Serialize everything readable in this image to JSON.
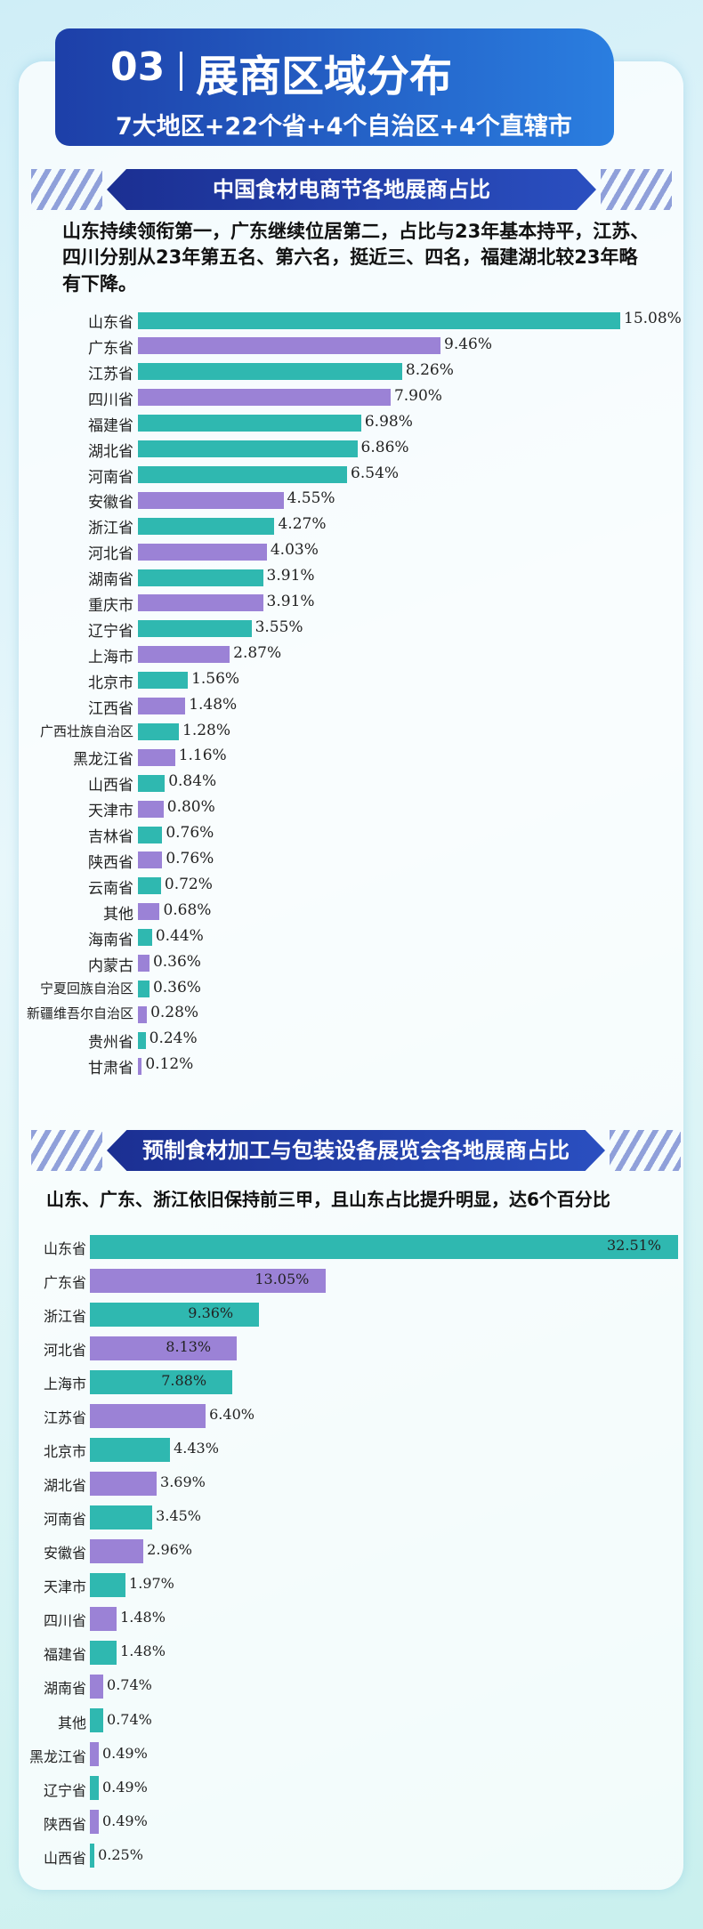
{
  "header": {
    "number": "03",
    "title": "展商区域分布",
    "subtitle": "7大地区+22个省+4个自治区+4个直辖市"
  },
  "chart_data": [
    {
      "type": "bar",
      "orientation": "horizontal",
      "title": "中国食材电商节各地展商占比",
      "subtitle": "山东持续领衔第一，广东继续位居第二，占比与23年基本持平，江苏、四川分别从23年第五名、第六名，挺近三、四名，福建湖北较23年略有下降。",
      "categories": [
        "山东省",
        "广东省",
        "江苏省",
        "四川省",
        "福建省",
        "湖北省",
        "河南省",
        "安徽省",
        "浙江省",
        "河北省",
        "湖南省",
        "重庆市",
        "辽宁省",
        "上海市",
        "北京市",
        "江西省",
        "广西壮族自治区",
        "黑龙江省",
        "山西省",
        "天津市",
        "吉林省",
        "陕西省",
        "云南省",
        "其他",
        "海南省",
        "内蒙古",
        "宁夏回族自治区",
        "新疆维吾尔自治区",
        "贵州省",
        "甘肃省"
      ],
      "values": [
        15.08,
        9.46,
        8.26,
        7.9,
        6.98,
        6.86,
        6.54,
        4.55,
        4.27,
        4.03,
        3.91,
        3.91,
        3.55,
        2.87,
        1.56,
        1.48,
        1.28,
        1.16,
        0.84,
        0.8,
        0.76,
        0.76,
        0.72,
        0.68,
        0.44,
        0.36,
        0.36,
        0.28,
        0.24,
        0.12
      ],
      "value_labels": [
        "15.08%",
        "9.46%",
        "8.26%",
        "7.90%",
        "6.98%",
        "6.86%",
        "6.54%",
        "4.55%",
        "4.27%",
        "4.03%",
        "3.91%",
        "3.91%",
        "3.55%",
        "2.87%",
        "1.56%",
        "1.48%",
        "1.28%",
        "1.16%",
        "0.84%",
        "0.80%",
        "0.76%",
        "0.76%",
        "0.72%",
        "0.68%",
        "0.44%",
        "0.36%",
        "0.36%",
        "0.28%",
        "0.24%",
        "0.12%"
      ],
      "colors": [
        "#2fb8b0",
        "#9b82d6",
        "#2fb8b0",
        "#9b82d6",
        "#2fb8b0",
        "#2fb8b0",
        "#2fb8b0",
        "#9b82d6",
        "#2fb8b0",
        "#9b82d6",
        "#2fb8b0",
        "#9b82d6",
        "#2fb8b0",
        "#9b82d6",
        "#2fb8b0",
        "#9b82d6",
        "#2fb8b0",
        "#9b82d6",
        "#2fb8b0",
        "#9b82d6",
        "#2fb8b0",
        "#9b82d6",
        "#2fb8b0",
        "#9b82d6",
        "#2fb8b0",
        "#9b82d6",
        "#2fb8b0",
        "#9b82d6",
        "#2fb8b0",
        "#9b82d6"
      ]
    },
    {
      "type": "bar",
      "orientation": "horizontal",
      "title": "预制食材加工与包装设备展览会各地展商占比",
      "subtitle": "山东、广东、浙江依旧保持前三甲，且山东占比提升明显，达6个百分比",
      "categories": [
        "山东省",
        "广东省",
        "浙江省",
        "河北省",
        "上海市",
        "江苏省",
        "北京市",
        "湖北省",
        "河南省",
        "安徽省",
        "天津市",
        "四川省",
        "福建省",
        "湖南省",
        "其他",
        "黑龙江省",
        "辽宁省",
        "陕西省",
        "山西省"
      ],
      "values": [
        32.51,
        13.05,
        9.36,
        8.13,
        7.88,
        6.4,
        4.43,
        3.69,
        3.45,
        2.96,
        1.97,
        1.48,
        1.48,
        0.74,
        0.74,
        0.49,
        0.49,
        0.49,
        0.25
      ],
      "value_labels": [
        "32.51%",
        "13.05%",
        "9.36%",
        "8.13%",
        "7.88%",
        "6.40%",
        "4.43%",
        "3.69%",
        "3.45%",
        "2.96%",
        "1.97%",
        "1.48%",
        "1.48%",
        "0.74%",
        "0.74%",
        "0.49%",
        "0.49%",
        "0.49%",
        "0.25%"
      ],
      "colors": [
        "#2fb8b0",
        "#9b82d6",
        "#2fb8b0",
        "#9b82d6",
        "#2fb8b0",
        "#9b82d6",
        "#2fb8b0",
        "#9b82d6",
        "#2fb8b0",
        "#9b82d6",
        "#2fb8b0",
        "#9b82d6",
        "#2fb8b0",
        "#9b82d6",
        "#2fb8b0",
        "#9b82d6",
        "#2fb8b0",
        "#9b82d6",
        "#2fb8b0"
      ]
    }
  ]
}
